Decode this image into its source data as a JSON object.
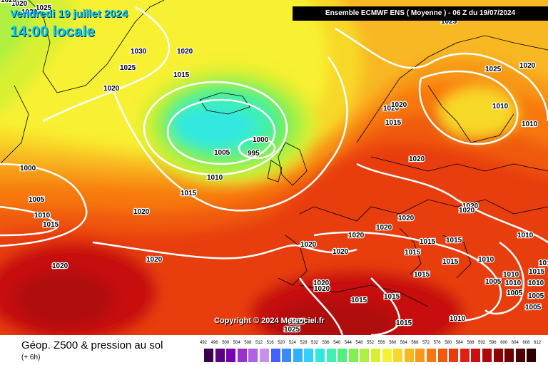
{
  "map": {
    "date_line": "Vendredi 19 juillet 2024",
    "time_line": "14:00 locale",
    "header": "Ensemble ECMWF ENS  ( Moyenne )  -  06 Z du 19/07/2024",
    "copyright": "Copyright © 2024 Meteociel.fr",
    "title": "Géop. Z500 & pression au sol",
    "subtitle": "(+ 6h)",
    "pressure_labels": [
      "1020",
      "1025",
      "1030",
      "1025",
      "1020",
      "1015",
      "1020",
      "1000",
      "1005",
      "1010",
      "1015",
      "1005",
      "1000",
      "995",
      "1010",
      "1015",
      "1020",
      "1020",
      "1020",
      "1025",
      "1025",
      "1020",
      "1020",
      "1020",
      "1015",
      "1010",
      "1010",
      "1020",
      "1020",
      "1020",
      "1020",
      "1020",
      "1015",
      "1015",
      "1020",
      "1015",
      "1015",
      "1010",
      "1015",
      "1020",
      "1015",
      "1020",
      "1010",
      "1005",
      "1010",
      "1015",
      "1015",
      "1010",
      "1010",
      "1005",
      "1005",
      "1005",
      "1010",
      "1015",
      "1020",
      "1025",
      "1025",
      "1020",
      "1015",
      "1020",
      "1020"
    ],
    "legend": {
      "unit": "dam",
      "ticks": [
        "492",
        "496",
        "500",
        "504",
        "508",
        "512",
        "516",
        "520",
        "524",
        "528",
        "532",
        "536",
        "540",
        "544",
        "548",
        "552",
        "556",
        "560",
        "564",
        "568",
        "572",
        "576",
        "580",
        "584",
        "588",
        "592",
        "596",
        "600",
        "604",
        "608",
        "612"
      ],
      "colors": [
        "#3c0050",
        "#5a0080",
        "#7a00b0",
        "#9a30d0",
        "#b060e0",
        "#c890f0",
        "#4060ff",
        "#3a8aff",
        "#30b0ff",
        "#30d0ff",
        "#30e8e0",
        "#40f0b0",
        "#50f080",
        "#80f050",
        "#b0f040",
        "#d8f030",
        "#f8f030",
        "#f8d828",
        "#f8b820",
        "#f89818",
        "#f87810",
        "#f05a10",
        "#e83c10",
        "#e02010",
        "#c81010",
        "#b00808",
        "#900000",
        "#700000",
        "#500000",
        "#300000"
      ]
    }
  }
}
